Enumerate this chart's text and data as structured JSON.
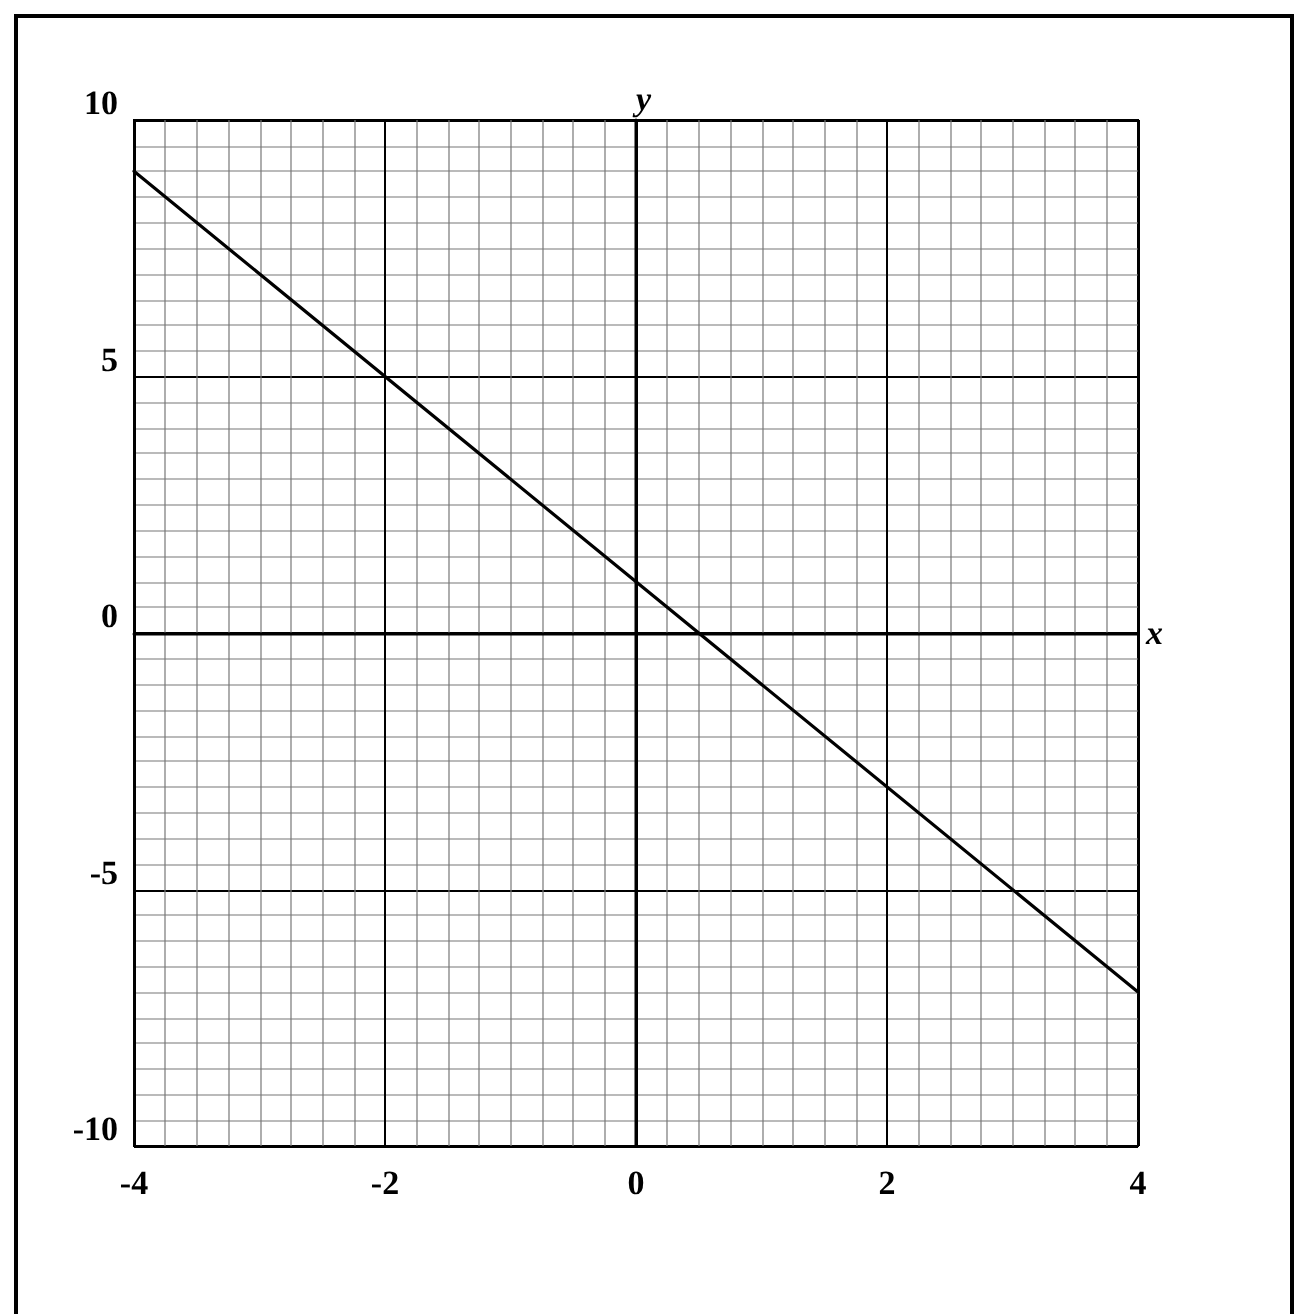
{
  "chart_data": {
    "type": "line",
    "xlabel": "x",
    "ylabel": "y",
    "x": [
      -4,
      4
    ],
    "series": [
      {
        "color": "#000000",
        "values": [
          9,
          -7
        ]
      }
    ],
    "xlim": [
      -4,
      4
    ],
    "ylim": [
      -10,
      10
    ],
    "xticks": [
      -4,
      -2,
      0,
      2,
      4
    ],
    "yticks": [
      -10,
      -5,
      0,
      5,
      10
    ],
    "grid": true,
    "marker": "none",
    "line_style": "solid"
  }
}
